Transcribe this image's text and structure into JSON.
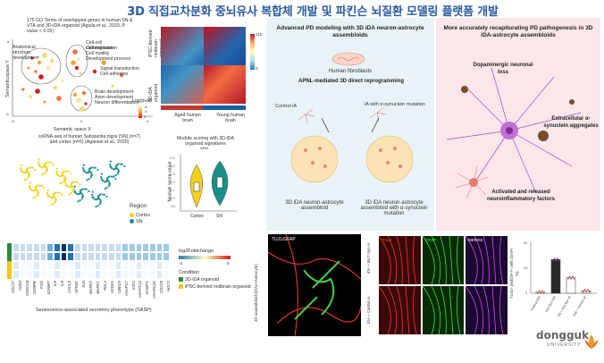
{
  "title": "3D 직접교차분화 중뇌유사 복합체 개발 및 파킨슨 뇌질환 모델링 플랫폼 개발",
  "scatter": {
    "caption": "175 GO Terms of overlapped genes in human SN & VTA and 3D-iDA organoid (Aguila et al., 2020, P value < 0.05)",
    "xlabel": "Semantic space X",
    "ylabel": "Semantic space Y",
    "labels": [
      "Anatomical structure development",
      "Cell-cell communication",
      "Cell migration",
      "Cell motility",
      "Development process",
      "Signal transduction",
      "Cell adhesion",
      "Brain development",
      "Axon development",
      "Neuron differentiation"
    ],
    "legend": "Log(pval)",
    "ticks_x": [
      "-8",
      "0",
      "8"
    ],
    "ticks_y": [
      "8",
      "0",
      "-8"
    ],
    "legend_ticks": [
      "-8",
      "-4",
      "0"
    ]
  },
  "heatmap": {
    "left_top": "iPSC-derived midbrain organoid",
    "left_bottom": "3D-iDA organoid",
    "bottom_left": "Aged human brain",
    "bottom_right": "Young human brain",
    "scale_max": "115",
    "scale_min": "0"
  },
  "umap": {
    "caption": "scRNA-seq of human Substantia nigra (SN) (n=7) and cortex (n=5) (Agarwal et al., 2020)",
    "legend_title": "Region",
    "legend_items": [
      "Cortex",
      "SN"
    ]
  },
  "violin": {
    "caption": "Module scoring with 3D-iDA organoid signatures",
    "sig": "****",
    "ylabel": "Module score value",
    "categories": [
      "Cortex",
      "SN"
    ],
    "yticks": [
      "0.5",
      "0.4",
      "0.3",
      "0.2",
      "0.1",
      "0.0",
      "-0.1"
    ]
  },
  "sasp": {
    "genes": [
      "CDC27",
      "CDK2",
      "CDKN1B",
      "CEBPB",
      "FOS",
      "IGFBP7",
      "IL6",
      "IL8",
      "CXCL8",
      "NFKB1",
      "JUN",
      "MAPK3",
      "MAPK1",
      "RELA",
      "VEGFA",
      "UBE2S",
      "ANAPC7",
      "E2F1",
      "ANAPC11",
      "EHMT1",
      "ANAPC16",
      "CDC26",
      "HIST1"
    ],
    "xlabel": "Senescence-associated secretory phenotype (SASP)",
    "legend_title": "log2Foldchange",
    "legend_ticks": [
      "-4",
      "6"
    ],
    "condition_title": "Condition",
    "conditions": [
      "3D-iDA organoid",
      "iPSC-derived midbrain organoid"
    ]
  },
  "pd_left": {
    "heading": "Advanced PD modeling with 3D iDA neuron-astrocyte assembloids",
    "fibro": "Human fibroblasts",
    "method": "APNL-mediated 3D direct reprogramming",
    "control": "Control iA",
    "mutation": "iA with α-synuclein mutation",
    "assembloid1": "3D iDA neuron-astrocyte assembloid",
    "assembloid2": "3D iDA neuron-astrocyte assembloid with α-synuclein mutation"
  },
  "pd_right": {
    "heading": "More accurately recapiturating PD pathogenesis in 3D iDA-astrocyte assembloids",
    "loss": "Dopaminergic neuronal loss",
    "aggregates": "Extracellular α-synuclein aggregates",
    "factors": "Activated and released neuroinflammatory factors"
  },
  "micro": {
    "big_label": "TUJ1/GFAP",
    "big_side": "3D assembloid (iDAs+Astrocyte)",
    "cols": [
      "TUJ1",
      "GFAP",
      "MERGE"
    ],
    "rows": [
      "iDA + MUT-Syn iA",
      "iDA + Control iA"
    ]
  },
  "bar": {
    "ylabel": "TUJ1+ p53/29+/+ cells (DAPI %)",
    "categories": [
      "Control iDA",
      "mut Syn iDA",
      "Control iDA + mut Syn iA",
      "Control iDA + Control iA"
    ],
    "values": [
      1,
      26,
      12,
      2
    ],
    "yticks": [
      "40",
      "20",
      "0"
    ],
    "ylim": [
      0,
      40
    ]
  },
  "logo": {
    "name": "dongguk",
    "sub": "UNIVERSITY"
  },
  "colors": {
    "title": "#2a5aa0",
    "cortex": "#f2d21b",
    "sn": "#1a8f8a",
    "high": "#d7191c",
    "low": "#2c7bb6"
  }
}
